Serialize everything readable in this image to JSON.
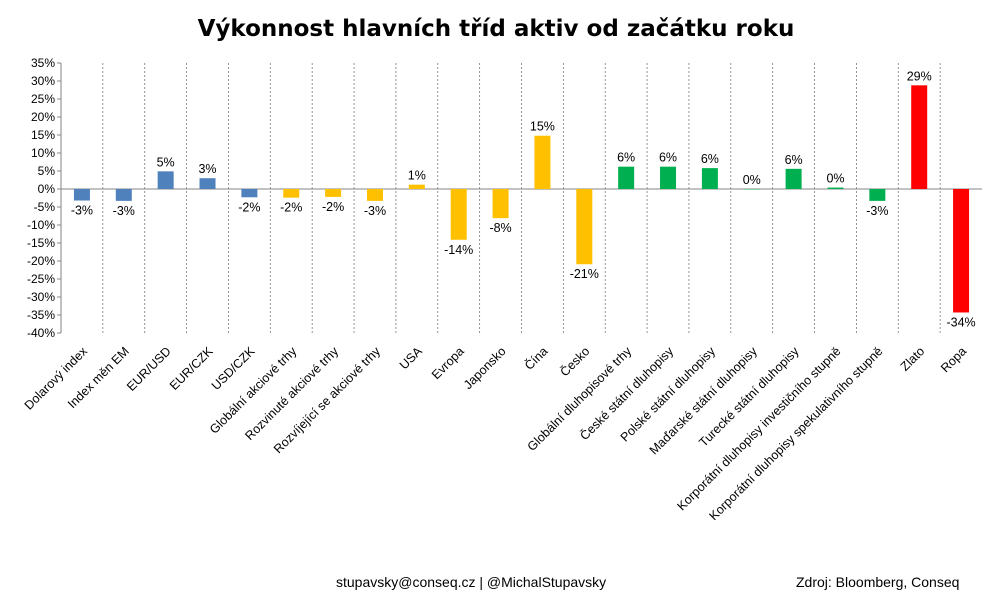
{
  "chart_data": {
    "type": "bar",
    "title": "Výkonnost hlavních tříd aktiv od začátku roku",
    "xlabel": "",
    "ylabel": "",
    "ylim": [
      -40,
      35
    ],
    "ytick_step": 5,
    "yticks": [
      "35%",
      "30%",
      "25%",
      "20%",
      "15%",
      "10%",
      "5%",
      "0%",
      "-5%",
      "-10%",
      "-15%",
      "-20%",
      "-25%",
      "-30%",
      "-35%",
      "-40%"
    ],
    "grid": "vertical dashed separators between categories",
    "legend": "none",
    "categories": [
      "Dolarový index",
      "Index měn EM",
      "EUR/USD",
      "EUR/CZK",
      "USD/CZK",
      "Globální akciové trhy",
      "Rozvinuté akciové trhy",
      "Rozvíjející se akciové trhy",
      "USA",
      "Evropa",
      "Japonsko",
      "Čína",
      "Česko",
      "Globální dluhopisové trhy",
      "České státní dluhopisy",
      "Polské státní dluhopisy",
      "Maďarské státní dluhopisy",
      "Turecké státní dluhopisy",
      "Korporátní dluhopisy investičního stupně",
      "Korporátní dluhopisy spekulativního stupně",
      "Zlato",
      "Ropa"
    ],
    "values": [
      -3.2,
      -3.3,
      4.9,
      3.0,
      -2.3,
      -2.4,
      -2.2,
      -3.3,
      1.2,
      -14.1,
      -8.1,
      14.8,
      -20.9,
      6.2,
      6.2,
      5.8,
      0.0,
      5.6,
      0.4,
      -3.3,
      28.8,
      -34.3
    ],
    "labels": [
      "-3%",
      "-3%",
      "5%",
      "3%",
      "-2%",
      "-2%",
      "-2%",
      "-3%",
      "1%",
      "-14%",
      "-8%",
      "15%",
      "-21%",
      "6%",
      "6%",
      "6%",
      "0%",
      "6%",
      "0%",
      "-3%",
      "29%",
      "-34%"
    ],
    "colors": [
      "#4f81bd",
      "#4f81bd",
      "#4f81bd",
      "#4f81bd",
      "#4f81bd",
      "#ffc000",
      "#ffc000",
      "#ffc000",
      "#ffc000",
      "#ffc000",
      "#ffc000",
      "#ffc000",
      "#ffc000",
      "#00b050",
      "#00b050",
      "#00b050",
      "#00b050",
      "#00b050",
      "#00b050",
      "#00b050",
      "#ff0000",
      "#ff0000"
    ]
  },
  "footer": {
    "contact": "stupavsky@conseq.cz  |  @MichalStupavsky",
    "source": "Zdroj: Bloomberg, Conseq"
  }
}
